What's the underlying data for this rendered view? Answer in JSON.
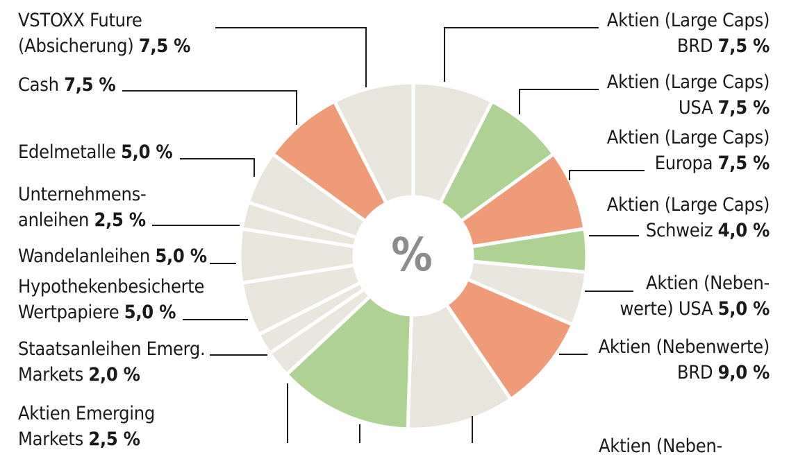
{
  "chart_data": {
    "type": "pie",
    "center_label": "%",
    "colors": {
      "neutral": "#e8e5dd",
      "green": "#add293",
      "orange": "#ef9b78",
      "line": "#1a1a1a"
    },
    "slices": [
      {
        "label_lines": [
          "Aktien (Large Caps)",
          "BRD"
        ],
        "value_text": "7,5 %",
        "value": 7.5,
        "color": "neutral",
        "side": "right"
      },
      {
        "label_lines": [
          "Aktien (Large Caps)",
          "USA"
        ],
        "value_text": "7,5 %",
        "value": 7.5,
        "color": "green",
        "side": "right"
      },
      {
        "label_lines": [
          "Aktien (Large Caps)",
          "Europa"
        ],
        "value_text": "7,5  %",
        "value": 7.5,
        "color": "orange",
        "side": "right"
      },
      {
        "label_lines": [
          "Aktien (Large Caps)",
          "Schweiz"
        ],
        "value_text": "4,0 %",
        "value": 4.0,
        "color": "green",
        "side": "right"
      },
      {
        "label_lines": [
          "Aktien (Neben-",
          "werte) USA"
        ],
        "value_text": "5,0 %",
        "value": 5.0,
        "color": "neutral",
        "side": "right"
      },
      {
        "label_lines": [
          "Aktien (Nebenwerte)",
          "BRD"
        ],
        "value_text": "9,0 %",
        "value": 9.0,
        "color": "orange",
        "side": "right"
      },
      {
        "label_lines": [],
        "value_text": "",
        "value": 10.0,
        "color": "neutral",
        "side": "bottom"
      },
      {
        "label_lines": [],
        "value_text": "",
        "value": 12.5,
        "color": "green",
        "side": "bottom"
      },
      {
        "label_lines": [
          "Aktien Emerging",
          "Markets"
        ],
        "value_text": "2,5 %",
        "value": 2.5,
        "color": "neutral",
        "side": "left"
      },
      {
        "label_lines": [
          "Staatsanleihen Emerg.",
          "Markets"
        ],
        "value_text": "2,0 %",
        "value": 2.0,
        "color": "neutral",
        "side": "left"
      },
      {
        "label_lines": [
          "Hypothekenbesicherte",
          "Wertpapiere"
        ],
        "value_text": "5,0 %",
        "value": 5.0,
        "color": "neutral",
        "side": "left"
      },
      {
        "label_lines": [
          "Wandelanleihen"
        ],
        "value_text": "5,0 %",
        "value": 5.0,
        "color": "neutral",
        "side": "left"
      },
      {
        "label_lines": [
          "Unternehmens-",
          "anleihen"
        ],
        "value_text": "2,5 %",
        "value": 2.5,
        "color": "neutral",
        "side": "left"
      },
      {
        "label_lines": [
          "Edelmetalle"
        ],
        "value_text": "5,0 %",
        "value": 5.0,
        "color": "neutral",
        "side": "left"
      },
      {
        "label_lines": [
          "Cash"
        ],
        "value_text": "7,5 %",
        "value": 7.5,
        "color": "orange",
        "side": "left"
      },
      {
        "label_lines": [
          "VSTOXX Future",
          "(Absicherung)"
        ],
        "value_text": "7,5 %",
        "value": 7.5,
        "color": "neutral",
        "side": "left"
      }
    ],
    "partial_label": "Aktien (Neben-"
  }
}
